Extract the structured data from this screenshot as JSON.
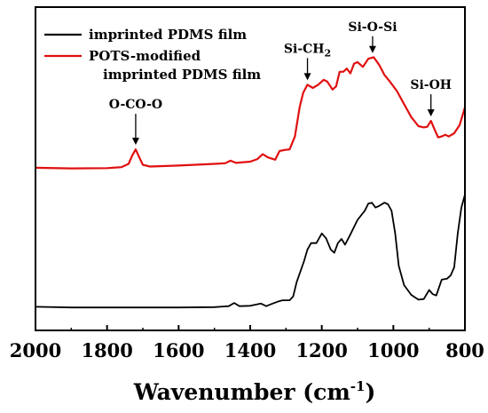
{
  "chart_data": {
    "type": "line",
    "xlabel": "Wavenumber (cm",
    "xlabel_sup": "-1",
    "xlabel_end": ")",
    "xlim": [
      2000,
      800
    ],
    "ylim": [
      0,
      1
    ],
    "x_ticks": [
      2000,
      1800,
      1600,
      1400,
      1200,
      1000,
      800
    ],
    "x_tick_labels": [
      "2000",
      "1800",
      "1600",
      "1400",
      "1200",
      "1000",
      "800"
    ],
    "y_ticks_shown": false,
    "legend_position": "top-left",
    "series": [
      {
        "name": "imprinted PDMS film",
        "color": "#000000",
        "points": [
          [
            2000,
            0.073
          ],
          [
            1900,
            0.071
          ],
          [
            1800,
            0.071
          ],
          [
            1700,
            0.071
          ],
          [
            1600,
            0.071
          ],
          [
            1500,
            0.072
          ],
          [
            1460,
            0.075
          ],
          [
            1445,
            0.085
          ],
          [
            1430,
            0.075
          ],
          [
            1400,
            0.076
          ],
          [
            1370,
            0.083
          ],
          [
            1355,
            0.075
          ],
          [
            1340,
            0.082
          ],
          [
            1320,
            0.09
          ],
          [
            1310,
            0.093
          ],
          [
            1290,
            0.093
          ],
          [
            1280,
            0.105
          ],
          [
            1270,
            0.15
          ],
          [
            1250,
            0.213
          ],
          [
            1240,
            0.25
          ],
          [
            1230,
            0.27
          ],
          [
            1215,
            0.27
          ],
          [
            1200,
            0.3
          ],
          [
            1188,
            0.285
          ],
          [
            1175,
            0.25
          ],
          [
            1165,
            0.24
          ],
          [
            1155,
            0.27
          ],
          [
            1145,
            0.283
          ],
          [
            1135,
            0.265
          ],
          [
            1120,
            0.297
          ],
          [
            1100,
            0.342
          ],
          [
            1080,
            0.37
          ],
          [
            1070,
            0.392
          ],
          [
            1060,
            0.395
          ],
          [
            1050,
            0.38
          ],
          [
            1040,
            0.385
          ],
          [
            1025,
            0.395
          ],
          [
            1015,
            0.39
          ],
          [
            1005,
            0.37
          ],
          [
            995,
            0.3
          ],
          [
            985,
            0.2
          ],
          [
            970,
            0.14
          ],
          [
            950,
            0.11
          ],
          [
            930,
            0.095
          ],
          [
            915,
            0.097
          ],
          [
            900,
            0.125
          ],
          [
            890,
            0.112
          ],
          [
            880,
            0.108
          ],
          [
            865,
            0.157
          ],
          [
            850,
            0.16
          ],
          [
            840,
            0.17
          ],
          [
            830,
            0.195
          ],
          [
            820,
            0.3
          ],
          [
            810,
            0.38
          ],
          [
            800,
            0.42
          ]
        ]
      },
      {
        "name": "POTS-modified\nimprinted PDMS film",
        "color": "#e01010",
        "points": [
          [
            2000,
            0.503
          ],
          [
            1900,
            0.501
          ],
          [
            1800,
            0.502
          ],
          [
            1760,
            0.505
          ],
          [
            1740,
            0.515
          ],
          [
            1730,
            0.54
          ],
          [
            1720,
            0.56
          ],
          [
            1712,
            0.54
          ],
          [
            1700,
            0.512
          ],
          [
            1680,
            0.507
          ],
          [
            1600,
            0.51
          ],
          [
            1500,
            0.515
          ],
          [
            1470,
            0.517
          ],
          [
            1455,
            0.525
          ],
          [
            1440,
            0.518
          ],
          [
            1400,
            0.522
          ],
          [
            1380,
            0.53
          ],
          [
            1365,
            0.545
          ],
          [
            1350,
            0.535
          ],
          [
            1330,
            0.528
          ],
          [
            1318,
            0.555
          ],
          [
            1305,
            0.558
          ],
          [
            1290,
            0.56
          ],
          [
            1275,
            0.6
          ],
          [
            1262,
            0.69
          ],
          [
            1252,
            0.735
          ],
          [
            1240,
            0.76
          ],
          [
            1225,
            0.75
          ],
          [
            1210,
            0.76
          ],
          [
            1195,
            0.775
          ],
          [
            1185,
            0.77
          ],
          [
            1170,
            0.745
          ],
          [
            1160,
            0.755
          ],
          [
            1150,
            0.8
          ],
          [
            1140,
            0.8
          ],
          [
            1130,
            0.81
          ],
          [
            1120,
            0.795
          ],
          [
            1110,
            0.825
          ],
          [
            1100,
            0.83
          ],
          [
            1085,
            0.815
          ],
          [
            1070,
            0.84
          ],
          [
            1055,
            0.845
          ],
          [
            1040,
            0.822
          ],
          [
            1025,
            0.79
          ],
          [
            1010,
            0.77
          ],
          [
            990,
            0.74
          ],
          [
            970,
            0.7
          ],
          [
            950,
            0.66
          ],
          [
            930,
            0.632
          ],
          [
            915,
            0.628
          ],
          [
            905,
            0.63
          ],
          [
            895,
            0.648
          ],
          [
            885,
            0.622
          ],
          [
            875,
            0.597
          ],
          [
            865,
            0.6
          ],
          [
            855,
            0.605
          ],
          [
            845,
            0.6
          ],
          [
            830,
            0.61
          ],
          [
            815,
            0.635
          ],
          [
            800,
            0.69
          ]
        ]
      }
    ],
    "annotations": [
      {
        "text": "O-CO-O",
        "x": 1720
      },
      {
        "text": "Si-CH",
        "subscript": "2",
        "x": 1240
      },
      {
        "text": "Si-O-Si",
        "x": 1058
      },
      {
        "text": "Si-OH",
        "x": 895
      }
    ]
  }
}
